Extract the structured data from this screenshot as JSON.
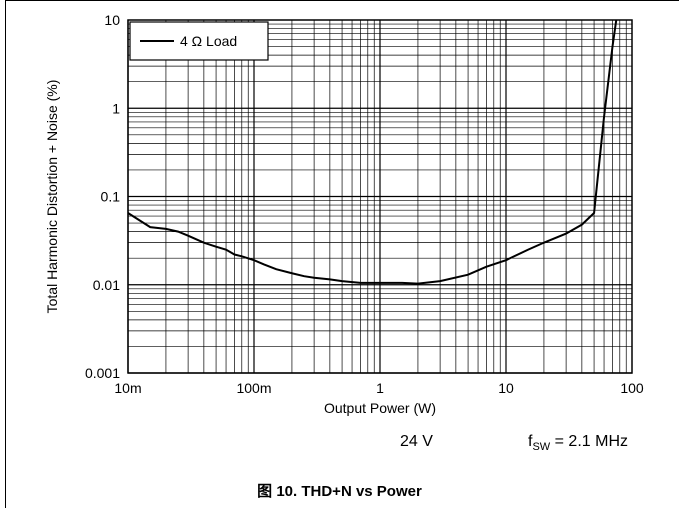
{
  "chart_data": {
    "type": "line",
    "title": "",
    "xlabel": "Output Power (W)",
    "ylabel": "Total Harmonic Distortion + Noise (%)",
    "xscale": "log",
    "yscale": "log",
    "xlim": [
      0.01,
      100
    ],
    "ylim": [
      0.001,
      10
    ],
    "x_ticks": [
      0.01,
      0.1,
      1,
      10,
      100
    ],
    "x_tick_labels": [
      "10m",
      "100m",
      "1",
      "10",
      "100"
    ],
    "y_ticks": [
      0.001,
      0.01,
      0.1,
      1,
      10
    ],
    "y_tick_labels": [
      "0.001",
      "0.01",
      "0.1",
      "1",
      "10"
    ],
    "grid": true,
    "legend_position": "top-left",
    "series": [
      {
        "name": "4 Ω Load",
        "color": "#000000",
        "x": [
          0.01,
          0.015,
          0.02,
          0.025,
          0.03,
          0.04,
          0.05,
          0.06,
          0.07,
          0.08,
          0.1,
          0.12,
          0.15,
          0.2,
          0.25,
          0.3,
          0.4,
          0.5,
          0.7,
          1,
          1.5,
          2,
          3,
          5,
          7,
          10,
          15,
          20,
          30,
          40,
          50,
          60,
          70,
          75
        ],
        "y": [
          0.065,
          0.045,
          0.043,
          0.04,
          0.036,
          0.03,
          0.027,
          0.025,
          0.022,
          0.021,
          0.019,
          0.017,
          0.015,
          0.0135,
          0.0125,
          0.012,
          0.0115,
          0.011,
          0.0105,
          0.0105,
          0.0105,
          0.0103,
          0.011,
          0.013,
          0.016,
          0.019,
          0.025,
          0.03,
          0.038,
          0.048,
          0.065,
          0.8,
          5,
          10
        ]
      }
    ]
  },
  "conditions": {
    "voltage": "24 V",
    "fsw_prefix": "f",
    "fsw_sub": "SW",
    "fsw_value": " = 2.1 MHz"
  },
  "caption": "图 10. THD+N vs Power"
}
